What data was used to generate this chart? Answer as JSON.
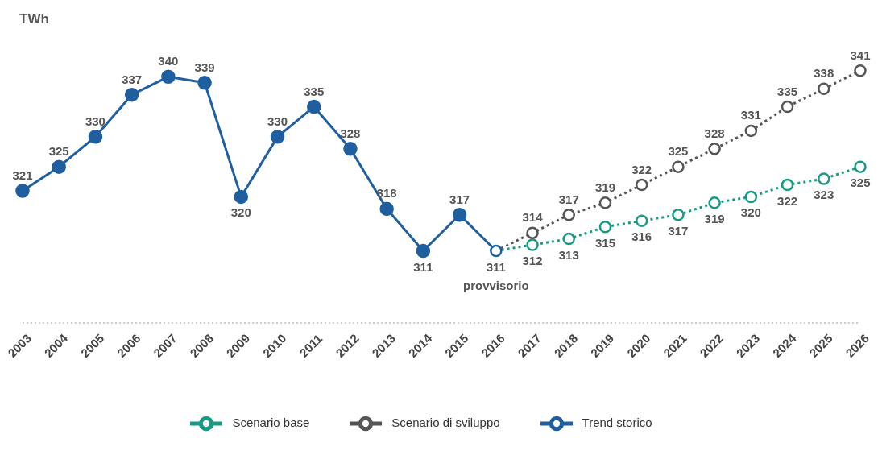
{
  "chart_data": {
    "type": "line",
    "ylabel": "TWh",
    "categories": [
      "2003",
      "2004",
      "2005",
      "2006",
      "2007",
      "2008",
      "2009",
      "2010",
      "2011",
      "2012",
      "2013",
      "2014",
      "2015",
      "2016",
      "2017",
      "2018",
      "2019",
      "2020",
      "2021",
      "2022",
      "2023",
      "2024",
      "2025",
      "2026"
    ],
    "series": [
      {
        "name": "Trend storico",
        "color": "#1f5fa0",
        "line_style": "solid",
        "values": [
          321,
          325,
          330,
          337,
          340,
          339,
          320,
          330,
          335,
          328,
          318,
          311,
          317,
          311,
          null,
          null,
          null,
          null,
          null,
          null,
          null,
          null,
          null,
          null
        ],
        "value_labels": [
          "321",
          "325",
          "330",
          "337",
          "340",
          "339",
          "320",
          "330",
          "335",
          "328",
          "318",
          "311",
          "317",
          "311",
          null,
          null,
          null,
          null,
          null,
          null,
          null,
          null,
          null,
          null
        ]
      },
      {
        "name": "Scenario base",
        "color": "#1a9a85",
        "line_style": "dotted",
        "values": [
          null,
          null,
          null,
          null,
          null,
          null,
          null,
          null,
          null,
          null,
          null,
          null,
          null,
          311,
          312,
          313,
          315,
          316,
          317,
          319,
          320,
          322,
          323,
          325
        ],
        "value_labels": [
          null,
          null,
          null,
          null,
          null,
          null,
          null,
          null,
          null,
          null,
          null,
          null,
          null,
          null,
          "312",
          "313",
          "315",
          "316",
          "317",
          "319",
          "320",
          "322",
          "323",
          "325"
        ]
      },
      {
        "name": "Scenario di sviluppo",
        "color": "#555555",
        "line_style": "dotted",
        "values": [
          null,
          null,
          null,
          null,
          null,
          null,
          null,
          null,
          null,
          null,
          null,
          null,
          null,
          311,
          314,
          317,
          319,
          322,
          325,
          328,
          331,
          335,
          338,
          341
        ],
        "value_labels": [
          null,
          null,
          null,
          null,
          null,
          null,
          null,
          null,
          null,
          null,
          null,
          null,
          null,
          null,
          "314",
          "317",
          "319",
          "322",
          "325",
          "328",
          "331",
          "335",
          "338",
          "341"
        ]
      }
    ],
    "annotations": [
      {
        "text": "provvisorio",
        "x": "2016",
        "y": 311
      }
    ],
    "tick_labels": "x",
    "legend": "bottom",
    "marker": "circle"
  }
}
